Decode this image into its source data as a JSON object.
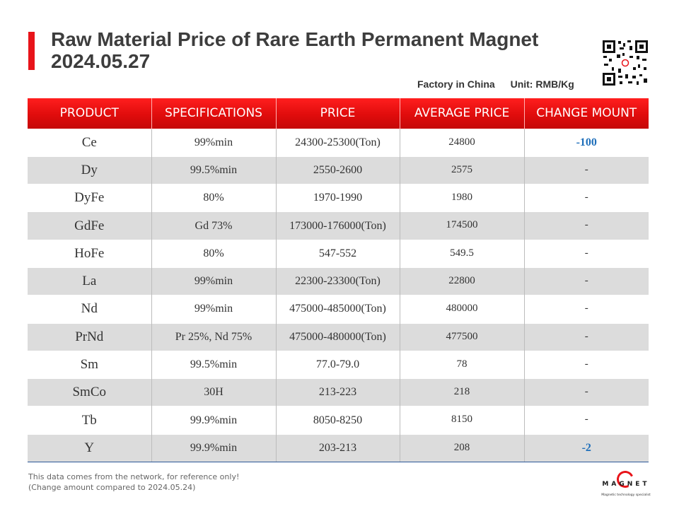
{
  "header": {
    "title_line1": "Raw Material Price of Rare Earth Permanent Magnet",
    "title_line2": "2024.05.27",
    "location": "Factory in China",
    "unit": "Unit: RMB/Kg"
  },
  "table": {
    "columns": [
      "PRODUCT",
      "SPECIFICATIONS",
      "PRICE",
      "AVERAGE PRICE",
      "CHANGE MOUNT"
    ],
    "rows": [
      {
        "product": "Ce",
        "spec": "99%min",
        "price": "24300-25300(Ton)",
        "avg": "24800",
        "change": "-100"
      },
      {
        "product": "Dy",
        "spec": "99.5%min",
        "price": "2550-2600",
        "avg": "2575",
        "change": "-"
      },
      {
        "product": "DyFe",
        "spec": "80%",
        "price": "1970-1990",
        "avg": "1980",
        "change": "-"
      },
      {
        "product": "GdFe",
        "spec": "Gd 73%",
        "price": "173000-176000(Ton)",
        "avg": "174500",
        "change": "-"
      },
      {
        "product": "HoFe",
        "spec": "80%",
        "price": "547-552",
        "avg": "549.5",
        "change": "-"
      },
      {
        "product": "La",
        "spec": "99%min",
        "price": "22300-23300(Ton)",
        "avg": "22800",
        "change": "-"
      },
      {
        "product": "Nd",
        "spec": "99%min",
        "price": "475000-485000(Ton)",
        "avg": "480000",
        "change": "-"
      },
      {
        "product": "PrNd",
        "spec": "Pr 25%, Nd 75%",
        "price": "475000-480000(Ton)",
        "avg": "477500",
        "change": "-"
      },
      {
        "product": "Sm",
        "spec": "99.5%min",
        "price": "77.0-79.0",
        "avg": "78",
        "change": "-"
      },
      {
        "product": "SmCo",
        "spec": "30H",
        "price": "213-223",
        "avg": "218",
        "change": "-"
      },
      {
        "product": "Tb",
        "spec": "99.9%min",
        "price": "8050-8250",
        "avg": "8150",
        "change": "-"
      },
      {
        "product": "Y",
        "spec": "99.9%min",
        "price": "203-213",
        "avg": "208",
        "change": "-2"
      }
    ]
  },
  "footer": {
    "note_line1": "This data comes from the network, for reference only!",
    "note_line2": "(Change amount compared to 2024.05.24)",
    "logo_word": "MAGNET",
    "logo_tagline": "Magnetic technology specialist"
  },
  "colors": {
    "accent": "#e8141a",
    "header_bg": "#e00c0c",
    "negative_change": "#1f6fba",
    "stripe": "#dcdcdc"
  },
  "icons": {
    "qr": "qr-code-icon",
    "logo": "magnet-logo-icon"
  }
}
